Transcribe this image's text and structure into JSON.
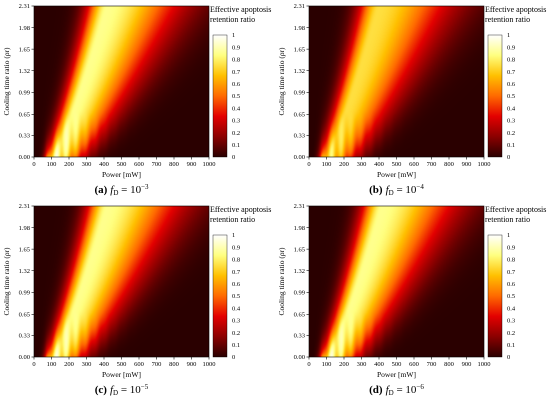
{
  "chart_data": [
    {
      "type": "heatmap",
      "caption": {
        "letter": "(a)",
        "f": "f",
        "sub": "D",
        "eq": " = 10",
        "exp": "−3"
      },
      "xlabel": "Power [mW]",
      "ylabel": "Cooling time ratio (ρr)",
      "xlim": [
        0,
        1000
      ],
      "ylim": [
        0,
        2.31
      ],
      "x_ticks": [
        "0",
        "100",
        "200",
        "300",
        "400",
        "500",
        "600",
        "700",
        "800",
        "900",
        "1000"
      ],
      "y_ticks": [
        "0.00",
        "0.33",
        "0.65",
        "0.99",
        "1.32",
        "1.65",
        "1.98",
        "2.31"
      ],
      "colorbar": {
        "title_line1": "Effective apoptosis",
        "title_line2": "retention ratio",
        "ticks": [
          "0",
          "0.1",
          "0.2",
          "0.3",
          "0.4",
          "0.5",
          "0.6",
          "0.7",
          "0.8",
          "0.9",
          "1"
        ],
        "range": [
          0,
          1
        ]
      },
      "colormap": [
        "#2a0000",
        "#8b0000",
        "#e30000",
        "#ff6a00",
        "#ffc000",
        "#ffff80",
        "#ffffff"
      ],
      "ridge": {
        "power_at_rho_0": 120,
        "power_at_rho_max": 420,
        "peak_value": 0.85
      }
    },
    {
      "type": "heatmap",
      "caption": {
        "letter": "(b)",
        "f": "f",
        "sub": "D",
        "eq": " = 10",
        "exp": "−4"
      },
      "xlabel": "Power [mW]",
      "ylabel": "Cooling time ratio (ρr)",
      "xlim": [
        0,
        1000
      ],
      "ylim": [
        0,
        2.31
      ],
      "x_ticks": [
        "0",
        "100",
        "200",
        "300",
        "400",
        "500",
        "600",
        "700",
        "800",
        "900",
        "1000"
      ],
      "y_ticks": [
        "0.00",
        "0.33",
        "0.65",
        "0.99",
        "1.32",
        "1.65",
        "1.98",
        "2.31"
      ],
      "colorbar": {
        "title_line1": "Effective apoptosis",
        "title_line2": "retention ratio",
        "ticks": [
          "0",
          "0.1",
          "0.2",
          "0.3",
          "0.4",
          "0.5",
          "0.6",
          "0.7",
          "0.8",
          "0.9",
          "1"
        ],
        "range": [
          0,
          1
        ]
      },
      "colormap": [
        "#2a0000",
        "#8b0000",
        "#e30000",
        "#ff6a00",
        "#ffc000",
        "#ffff80",
        "#ffffff"
      ],
      "ridge": {
        "power_at_rho_0": 110,
        "power_at_rho_max": 400,
        "peak_value": 0.75
      }
    },
    {
      "type": "heatmap",
      "caption": {
        "letter": "(c)",
        "f": "f",
        "sub": "D",
        "eq": " = 10",
        "exp": "−5"
      },
      "xlabel": "Power [mW]",
      "ylabel": "Cooling time ratio (ρr)",
      "xlim": [
        0,
        1000
      ],
      "ylim": [
        0,
        2.31
      ],
      "x_ticks": [
        "0",
        "100",
        "200",
        "300",
        "400",
        "500",
        "600",
        "700",
        "800",
        "900",
        "1000"
      ],
      "y_ticks": [
        "0.00",
        "0.33",
        "0.65",
        "0.99",
        "1.32",
        "1.65",
        "1.98",
        "2.31"
      ],
      "colorbar": {
        "title_line1": "Effective apoptosis",
        "title_line2": "retention ratio",
        "ticks": [
          "0",
          "0.1",
          "0.2",
          "0.3",
          "0.4",
          "0.5",
          "0.6",
          "0.7",
          "0.8",
          "0.9",
          "1"
        ],
        "range": [
          0,
          1
        ]
      },
      "colormap": [
        "#2a0000",
        "#8b0000",
        "#e30000",
        "#ff6a00",
        "#ffc000",
        "#ffff80",
        "#ffffff"
      ],
      "ridge": {
        "power_at_rho_0": 120,
        "power_at_rho_max": 420,
        "peak_value": 0.85
      }
    },
    {
      "type": "heatmap",
      "caption": {
        "letter": "(d)",
        "f": "f",
        "sub": "D",
        "eq": " = 10",
        "exp": "−6"
      },
      "xlabel": "Power [mW]",
      "ylabel": "Cooling time ratio (ρr)",
      "xlim": [
        0,
        1000
      ],
      "ylim": [
        0,
        2.31
      ],
      "x_ticks": [
        "0",
        "100",
        "200",
        "300",
        "400",
        "500",
        "600",
        "700",
        "800",
        "900",
        "1000"
      ],
      "y_ticks": [
        "0.00",
        "0.33",
        "0.65",
        "0.99",
        "1.32",
        "1.65",
        "1.98",
        "2.31"
      ],
      "colorbar": {
        "title_line1": "Effective apoptosis",
        "title_line2": "retention ratio",
        "ticks": [
          "0",
          "0.1",
          "0.2",
          "0.3",
          "0.4",
          "0.5",
          "0.6",
          "0.7",
          "0.8",
          "0.9",
          "1"
        ],
        "range": [
          0,
          1
        ]
      },
      "colormap": [
        "#2a0000",
        "#8b0000",
        "#e30000",
        "#ff6a00",
        "#ffc000",
        "#ffff80",
        "#ffffff"
      ],
      "ridge": {
        "power_at_rho_0": 120,
        "power_at_rho_max": 420,
        "peak_value": 0.85
      }
    }
  ]
}
